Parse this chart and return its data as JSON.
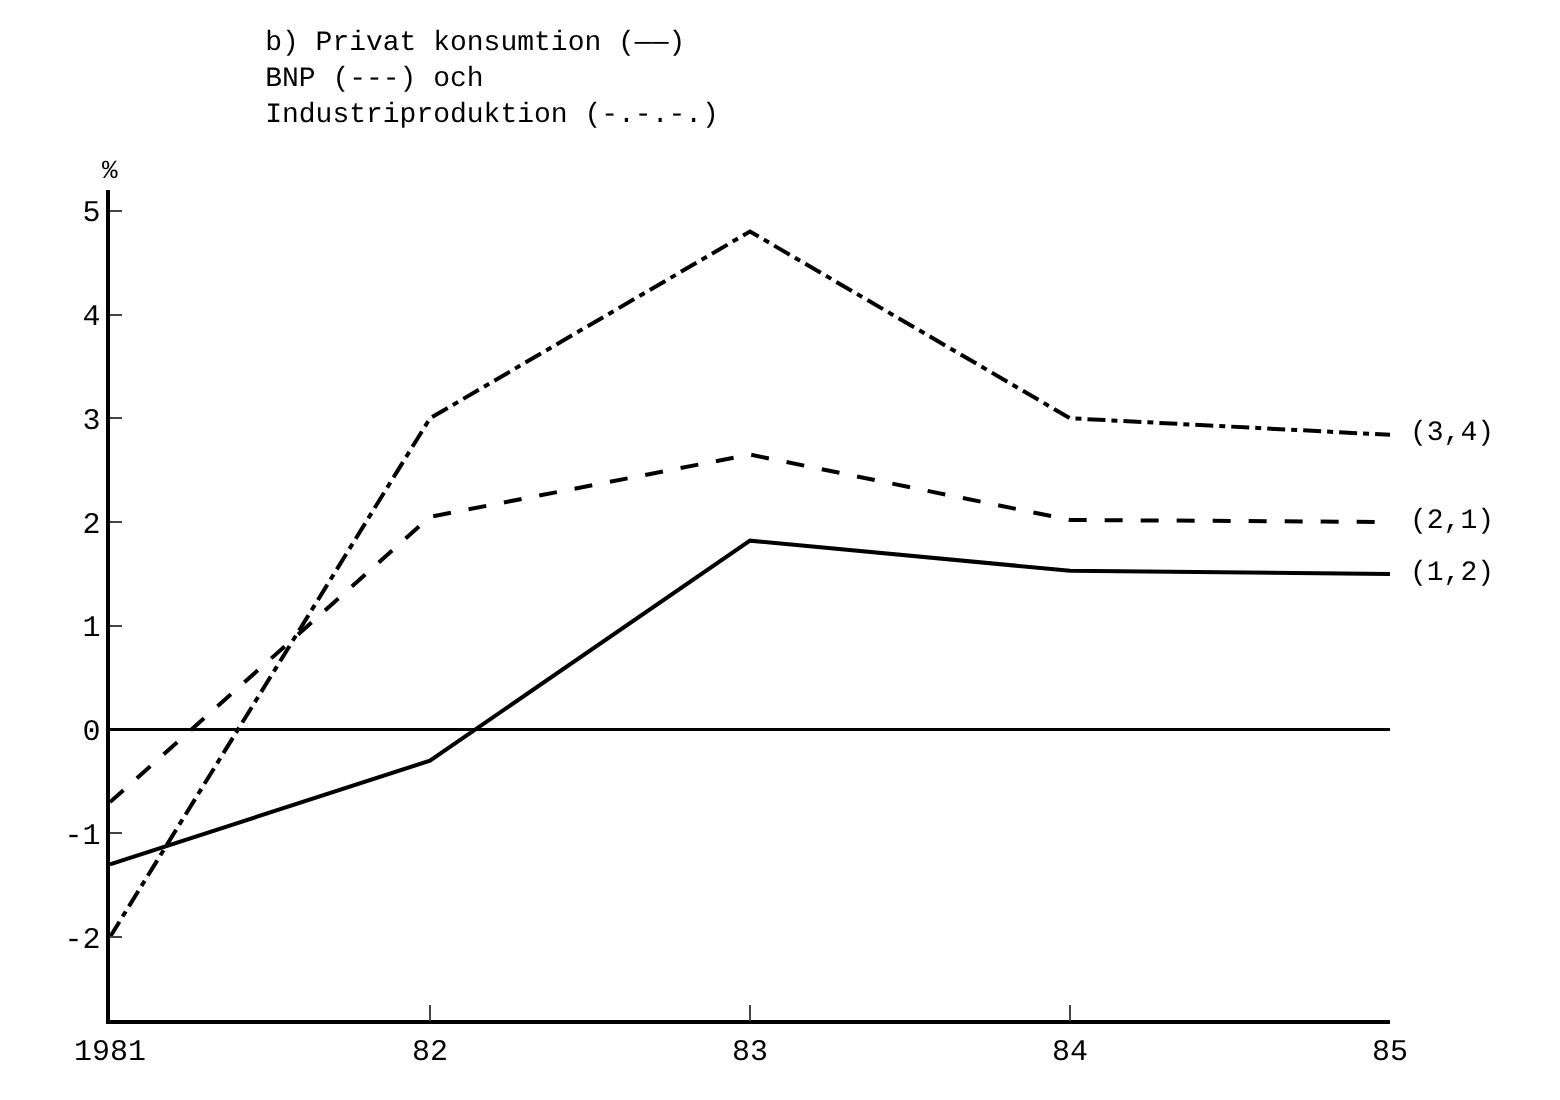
{
  "chart_data": {
    "type": "line",
    "title": "b) Privat konsumtion (——)\nBNP (---) och\nIndustriproduktion (-.-.-.)",
    "ylabel": "%",
    "x": [
      1981,
      1982,
      1983,
      1984,
      1985
    ],
    "series": [
      {
        "name": "(1,2)",
        "color": "#000000",
        "line_style": "solid",
        "values": [
          -1.3,
          -0.3,
          1.82,
          1.53,
          1.5
        ]
      },
      {
        "name": "(2,1)",
        "color": "#000000",
        "line_style": "dashed",
        "values": [
          -0.7,
          2.05,
          2.65,
          2.02,
          2.0
        ]
      },
      {
        "name": "(3,4)",
        "color": "#000000",
        "line_style": "dashdot",
        "values": [
          -2.0,
          3.0,
          4.8,
          3.0,
          2.84
        ]
      }
    ],
    "ref_lines": [
      {
        "axis": "y",
        "value": 0,
        "color": "#000000"
      }
    ],
    "xlim": [
      1981,
      1985
    ],
    "xticks": [
      1981,
      {
        "value": 1982,
        "label": "82"
      },
      {
        "value": 1983,
        "label": "83"
      },
      {
        "value": 1984,
        "label": "84"
      },
      {
        "value": 1985,
        "label": "85"
      }
    ],
    "ylim": [
      -2.8,
      5.2
    ],
    "yticks": [
      -2,
      -1,
      0,
      1,
      2,
      3,
      4,
      5
    ],
    "marker": "none"
  }
}
